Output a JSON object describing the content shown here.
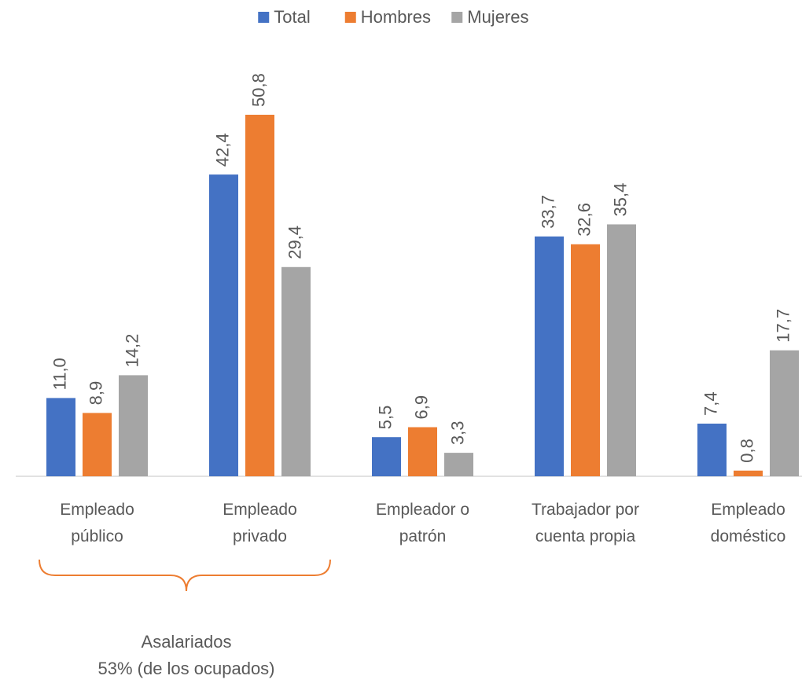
{
  "chart_data": {
    "type": "bar",
    "categories": [
      "Empleado público",
      "Empleado privado",
      "Empleador o patrón",
      "Trabajador por cuenta propia",
      "Empleado doméstico"
    ],
    "series": [
      {
        "name": "Total",
        "color": "#4472c4",
        "values": [
          11.0,
          42.4,
          5.5,
          33.7,
          7.4
        ],
        "value_labels": [
          "11,0",
          "42,4",
          "5,5",
          "33,7",
          "7,4"
        ]
      },
      {
        "name": "Hombres",
        "color": "#ed7d31",
        "values": [
          8.9,
          50.8,
          6.9,
          32.6,
          0.8
        ],
        "value_labels": [
          "8,9",
          "50,8",
          "6,9",
          "32,6",
          "0,8"
        ]
      },
      {
        "name": "Mujeres",
        "color": "#a5a5a5",
        "values": [
          14.2,
          29.4,
          3.3,
          35.4,
          17.7
        ],
        "value_labels": [
          "14,2",
          "29,4",
          "3,3",
          "35,4",
          "17,7"
        ]
      }
    ],
    "legend": "top",
    "annotation": [
      "Asalariados",
      "53% (de los ocupados)"
    ]
  }
}
